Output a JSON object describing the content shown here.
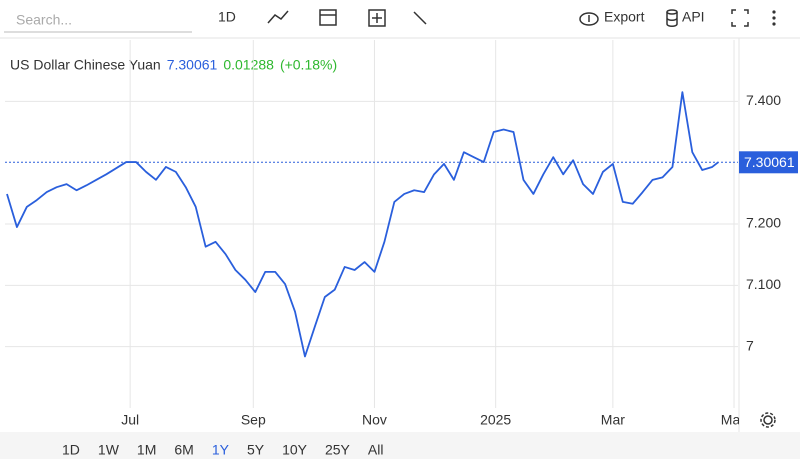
{
  "toolbar": {
    "search": "Search...",
    "interval": "1D",
    "export": "Export",
    "api": "API"
  },
  "ranges": [
    "1D",
    "1W",
    "1M",
    "6M",
    "1Y",
    "5Y",
    "10Y",
    "25Y",
    "All"
  ],
  "active_range": 4,
  "chart_data": {
    "type": "line",
    "title": "US Dollar Chinese Yuan",
    "last_value": 7.30061,
    "change": 0.01288,
    "change_pct": "(+0.18%)",
    "x": [
      "2024-04-30",
      "2024-05-05",
      "2024-05-10",
      "2024-05-15",
      "2024-05-20",
      "2024-05-25",
      "2024-05-30",
      "2024-06-04",
      "2024-06-09",
      "2024-06-14",
      "2024-06-19",
      "2024-06-24",
      "2024-06-29",
      "2024-07-04",
      "2024-07-09",
      "2024-07-14",
      "2024-07-19",
      "2024-07-24",
      "2024-07-29",
      "2024-08-03",
      "2024-08-08",
      "2024-08-13",
      "2024-08-18",
      "2024-08-23",
      "2024-08-28",
      "2024-09-02",
      "2024-09-07",
      "2024-09-12",
      "2024-09-17",
      "2024-09-22",
      "2024-09-27",
      "2024-10-02",
      "2024-10-07",
      "2024-10-12",
      "2024-10-17",
      "2024-10-22",
      "2024-10-27",
      "2024-11-01",
      "2024-11-06",
      "2024-11-11",
      "2024-11-16",
      "2024-11-21",
      "2024-11-26",
      "2024-12-01",
      "2024-12-06",
      "2024-12-11",
      "2024-12-16",
      "2024-12-21",
      "2024-12-26",
      "2024-12-31",
      "2025-01-05",
      "2025-01-10",
      "2025-01-15",
      "2025-01-20",
      "2025-01-25",
      "2025-01-30",
      "2025-02-04",
      "2025-02-09",
      "2025-02-14",
      "2025-02-19",
      "2025-02-24",
      "2025-03-01",
      "2025-03-06",
      "2025-03-11",
      "2025-03-16",
      "2025-03-21",
      "2025-03-26",
      "2025-03-31",
      "2025-04-05",
      "2025-04-10",
      "2025-04-15",
      "2025-04-20",
      "2025-04-23"
    ],
    "series": [
      {
        "name": "US Dollar Chinese Yuan",
        "color": "#2a5fdc",
        "values": [
          7.249,
          7.195,
          7.228,
          7.239,
          7.252,
          7.26,
          7.265,
          7.255,
          7.263,
          7.272,
          7.281,
          7.291,
          7.301,
          7.301,
          7.285,
          7.272,
          7.293,
          7.285,
          7.26,
          7.228,
          7.163,
          7.171,
          7.151,
          7.125,
          7.109,
          7.089,
          7.122,
          7.122,
          7.102,
          7.057,
          6.984,
          7.033,
          7.081,
          7.093,
          7.13,
          7.125,
          7.138,
          7.122,
          7.171,
          7.236,
          7.249,
          7.255,
          7.252,
          7.281,
          7.298,
          7.272,
          7.317,
          7.309,
          7.301,
          7.35,
          7.354,
          7.35,
          7.272,
          7.249,
          7.281,
          7.309,
          7.281,
          7.304,
          7.265,
          7.249,
          7.285,
          7.298,
          7.236,
          7.233,
          7.252,
          7.272,
          7.276,
          7.293,
          7.415,
          7.317,
          7.288,
          7.293,
          7.30061
        ]
      }
    ],
    "xlim": [
      "2024-04-29",
      "2025-05-03"
    ],
    "xticks": [
      {
        "value": "2024-07-01",
        "label": "Jul"
      },
      {
        "value": "2024-09-01",
        "label": "Sep"
      },
      {
        "value": "2024-11-01",
        "label": "Nov"
      },
      {
        "value": "2025-01-01",
        "label": "2025"
      },
      {
        "value": "2025-03-01",
        "label": "Mar"
      },
      {
        "value": "2025-05-01",
        "label": "May"
      }
    ],
    "ylim": [
      6.9,
      7.5
    ],
    "yticks": [
      7,
      {
        "value": 7.1,
        "label": "7.100"
      },
      {
        "value": 7.2,
        "label": "7.200"
      },
      {
        "value": 7.4,
        "label": "7.400"
      }
    ],
    "grid": true
  }
}
